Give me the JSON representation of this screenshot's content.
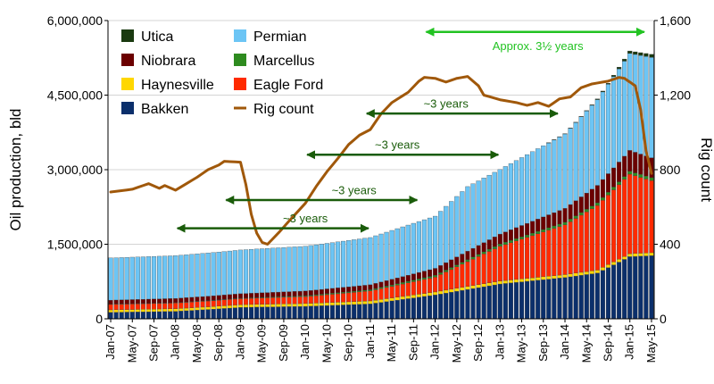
{
  "chart_data": {
    "type": "bar",
    "stacked": true,
    "ylabel": "Oil production, bld",
    "y2label": "Rig count",
    "ylim": [
      0,
      6000000
    ],
    "y2lim": [
      0,
      1600
    ],
    "yticks": [
      "0",
      "1,500,000",
      "3,000,000",
      "4,500,000",
      "6,000,000"
    ],
    "y2ticks": [
      "0",
      "400",
      "800",
      "1,200",
      "1,600"
    ],
    "grid": true,
    "legend_position": "top-left",
    "x_tick_labels": [
      "Jan-07",
      "May-07",
      "Sep-07",
      "Jan-08",
      "May-08",
      "Sep-08",
      "Jan-09",
      "May-09",
      "Sep-09",
      "Jan-10",
      "May-10",
      "Sep-10",
      "Jan-11",
      "May-11",
      "Sep-11",
      "Jan-12",
      "May-12",
      "Sep-12",
      "Jan-13",
      "May-13",
      "Sep-13",
      "Jan-14",
      "May-14",
      "Sep-14",
      "Jan-15",
      "May-15"
    ],
    "month_count": 101,
    "series": [
      {
        "name": "Bakken",
        "color": "#0b2f6b",
        "anchors": [
          [
            0,
            130000
          ],
          [
            12,
            150000
          ],
          [
            20,
            200000
          ],
          [
            24,
            230000
          ],
          [
            36,
            250000
          ],
          [
            48,
            300000
          ],
          [
            60,
            480000
          ],
          [
            72,
            700000
          ],
          [
            84,
            830000
          ],
          [
            90,
            920000
          ],
          [
            96,
            1250000
          ],
          [
            100,
            1270000
          ]
        ]
      },
      {
        "name": "Haynesville",
        "color": "#ffd700",
        "anchors": [
          [
            0,
            50000
          ],
          [
            24,
            55000
          ],
          [
            48,
            60000
          ],
          [
            72,
            60000
          ],
          [
            100,
            60000
          ]
        ]
      },
      {
        "name": "Eagle Ford",
        "color": "#ff2a00",
        "anchors": [
          [
            0,
            110000
          ],
          [
            24,
            120000
          ],
          [
            36,
            140000
          ],
          [
            48,
            200000
          ],
          [
            60,
            300000
          ],
          [
            72,
            700000
          ],
          [
            84,
            1000000
          ],
          [
            96,
            1600000
          ],
          [
            100,
            1450000
          ]
        ]
      },
      {
        "name": "Marcellus",
        "color": "#2e8b1f",
        "anchors": [
          [
            0,
            5000
          ],
          [
            24,
            10000
          ],
          [
            48,
            25000
          ],
          [
            72,
            45000
          ],
          [
            100,
            60000
          ]
        ]
      },
      {
        "name": "Niobrara",
        "color": "#6b0000",
        "anchors": [
          [
            0,
            80000
          ],
          [
            24,
            90000
          ],
          [
            48,
            100000
          ],
          [
            60,
            140000
          ],
          [
            72,
            200000
          ],
          [
            84,
            280000
          ],
          [
            96,
            420000
          ],
          [
            100,
            400000
          ]
        ]
      },
      {
        "name": "Permian",
        "color": "#6cc5f5",
        "anchors": [
          [
            0,
            850000
          ],
          [
            12,
            860000
          ],
          [
            24,
            880000
          ],
          [
            36,
            900000
          ],
          [
            48,
            950000
          ],
          [
            60,
            1050000
          ],
          [
            66,
            1300000
          ],
          [
            72,
            1300000
          ],
          [
            84,
            1500000
          ],
          [
            96,
            1950000
          ],
          [
            100,
            2020000
          ]
        ]
      },
      {
        "name": "Utica",
        "color": "#1a3a10",
        "anchors": [
          [
            0,
            0
          ],
          [
            80,
            0
          ],
          [
            86,
            5000
          ],
          [
            92,
            20000
          ],
          [
            96,
            50000
          ],
          [
            100,
            60000
          ]
        ]
      }
    ],
    "rig_count": {
      "name": "Rig count",
      "color": "#a0580a",
      "anchors": [
        [
          0,
          680
        ],
        [
          4,
          695
        ],
        [
          7,
          725
        ],
        [
          9,
          700
        ],
        [
          10,
          715
        ],
        [
          12,
          690
        ],
        [
          16,
          760
        ],
        [
          18,
          800
        ],
        [
          20,
          825
        ],
        [
          21,
          845
        ],
        [
          24,
          840
        ],
        [
          25,
          720
        ],
        [
          26,
          560
        ],
        [
          27,
          460
        ],
        [
          28,
          410
        ],
        [
          29,
          400
        ],
        [
          31,
          460
        ],
        [
          33,
          525
        ],
        [
          36,
          620
        ],
        [
          38,
          710
        ],
        [
          40,
          790
        ],
        [
          42,
          860
        ],
        [
          44,
          935
        ],
        [
          46,
          985
        ],
        [
          48,
          1015
        ],
        [
          50,
          1100
        ],
        [
          52,
          1160
        ],
        [
          55,
          1215
        ],
        [
          57,
          1275
        ],
        [
          58,
          1295
        ],
        [
          60,
          1290
        ],
        [
          62,
          1270
        ],
        [
          64,
          1290
        ],
        [
          66,
          1300
        ],
        [
          68,
          1250
        ],
        [
          69,
          1200
        ],
        [
          72,
          1175
        ],
        [
          75,
          1160
        ],
        [
          77,
          1145
        ],
        [
          79,
          1160
        ],
        [
          81,
          1140
        ],
        [
          83,
          1180
        ],
        [
          85,
          1190
        ],
        [
          87,
          1240
        ],
        [
          89,
          1260
        ],
        [
          92,
          1275
        ],
        [
          94,
          1295
        ],
        [
          95,
          1290
        ],
        [
          97,
          1250
        ],
        [
          98,
          1120
        ],
        [
          99,
          900
        ],
        [
          100,
          780
        ]
      ]
    },
    "annotations": [
      {
        "label": "~3 years",
        "x1": 12,
        "x2": 48,
        "y": 1820000,
        "text_x": 36,
        "text_y": 2030000,
        "color": "#1a5c0a"
      },
      {
        "label": "~3 years",
        "x1": 21,
        "x2": 57,
        "y": 2390000,
        "text_x": 45,
        "text_y": 2600000,
        "color": "#1a5c0a"
      },
      {
        "label": "~3 years",
        "x1": 36,
        "x2": 72,
        "y": 3300000,
        "text_x": 53,
        "text_y": 3510000,
        "color": "#1a5c0a"
      },
      {
        "label": "~3 years",
        "x1": 47,
        "x2": 83,
        "y": 4130000,
        "text_x": 62,
        "text_y": 4340000,
        "color": "#1a5c0a"
      },
      {
        "label": "Approx. 3½ years",
        "x1": 58,
        "x2": 99,
        "y": 5770000,
        "text_x": 79,
        "text_y": 5500000,
        "color": "#22c322"
      }
    ]
  }
}
